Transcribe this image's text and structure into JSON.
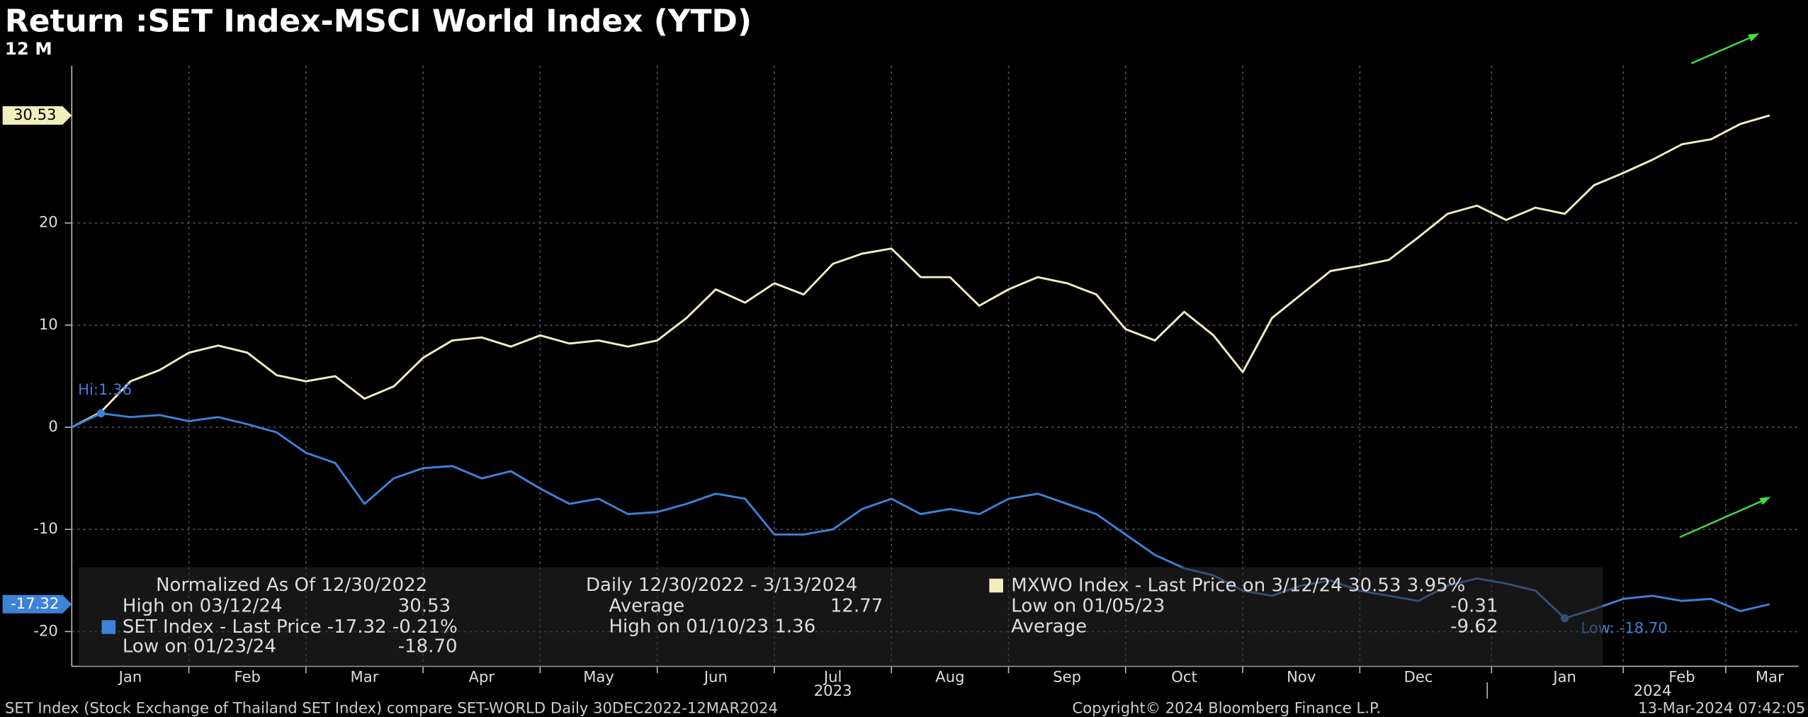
{
  "chart_data": {
    "type": "line",
    "title": "Return :SET Index-MSCI World Index (YTD)",
    "subtitle": "12 M",
    "categories": [
      null,
      null,
      "Jan",
      null,
      null,
      null,
      "Feb",
      null,
      null,
      null,
      "Mar",
      null,
      null,
      null,
      "Apr",
      null,
      null,
      null,
      "May",
      null,
      null,
      null,
      "Jun",
      null,
      null,
      null,
      "Jul",
      null,
      null,
      null,
      "Aug",
      null,
      null,
      null,
      "Sep",
      null,
      null,
      null,
      "Oct",
      null,
      null,
      null,
      "Nov",
      null,
      null,
      null,
      "Dec",
      null,
      null,
      null,
      null,
      "Jan",
      null,
      null,
      null,
      "Feb",
      null,
      null,
      "Mar"
    ],
    "year_labels": [
      "2023",
      "2024"
    ],
    "series": [
      {
        "name": "MXWO Index",
        "color": "#f3eebd",
        "last_label": "30.53",
        "values": [
          0,
          1.5,
          4.5,
          5.6,
          7.3,
          8,
          7.3,
          5.1,
          4.5,
          5,
          2.8,
          4,
          6.8,
          8.5,
          8.8,
          7.9,
          9,
          8.2,
          8.5,
          7.9,
          8.5,
          10.7,
          13.5,
          12.2,
          14.1,
          13,
          16,
          17,
          17.5,
          14.7,
          14.7,
          11.9,
          13.5,
          14.7,
          14.1,
          13,
          9.6,
          8.5,
          11.3,
          9,
          5.4,
          10.7,
          13,
          15.3,
          15.8,
          16.4,
          18.6,
          20.9,
          21.7,
          20.3,
          21.5,
          20.9,
          23.7,
          24.9,
          26.2,
          27.7,
          28.2,
          29.7,
          30.53
        ]
      },
      {
        "name": "SET Index",
        "color": "#3d82d8",
        "last_label": "-17.32",
        "values": [
          0,
          1.36,
          1,
          1.2,
          0.6,
          1,
          0.3,
          -0.5,
          -2.5,
          -3.5,
          -7.5,
          -5,
          -4,
          -3.8,
          -5,
          -4.3,
          -6,
          -7.5,
          -7,
          -8.5,
          -8.3,
          -7.5,
          -6.5,
          -7,
          -10.5,
          -10.5,
          -10,
          -8,
          -7,
          -8.5,
          -8,
          -8.5,
          -7,
          -6.5,
          -7.5,
          -8.5,
          -10.5,
          -12.5,
          -13.8,
          -14.5,
          -16,
          -16.5,
          -15.5,
          -15,
          -16,
          -16.5,
          -17,
          -15.5,
          -14.8,
          -15.3,
          -16,
          -18.7,
          -17.8,
          -16.8,
          -16.5,
          -17,
          -16.8,
          -18,
          -17.32
        ]
      }
    ],
    "annotations": {
      "high": "Hi:1.36",
      "low": "Low: -18.70"
    },
    "ylim": [
      -23.4,
      35.4
    ],
    "yticks": [
      -20,
      -10,
      0,
      10,
      20
    ],
    "grid": true,
    "legend": {
      "row1": [
        "Normalized As Of 12/30/2022",
        "Daily 12/30/2022 - 3/13/2024",
        " - Last Price on 3/12/24 30.53  3.95%"
      ],
      "row2": [
        "High on 03/12/24",
        "30.53",
        "Average",
        "12.77",
        "Low on 01/05/23",
        "-0.31"
      ],
      "row3": [
        " - Last Price -17.32  -0.21%",
        "High on 01/10/23 1.36",
        "Average",
        "-9.62"
      ],
      "row4": [
        "Low on 01/23/24",
        "-18.70"
      ]
    },
    "footer": [
      "SET Index (Stock Exchange of Thailand SET Index) compare SET-WORLD  Daily 30DEC2022-12MAR2024",
      "Copyright© 2024 Bloomberg Finance L.P.",
      "13-Mar-2024 07:42:05"
    ]
  }
}
